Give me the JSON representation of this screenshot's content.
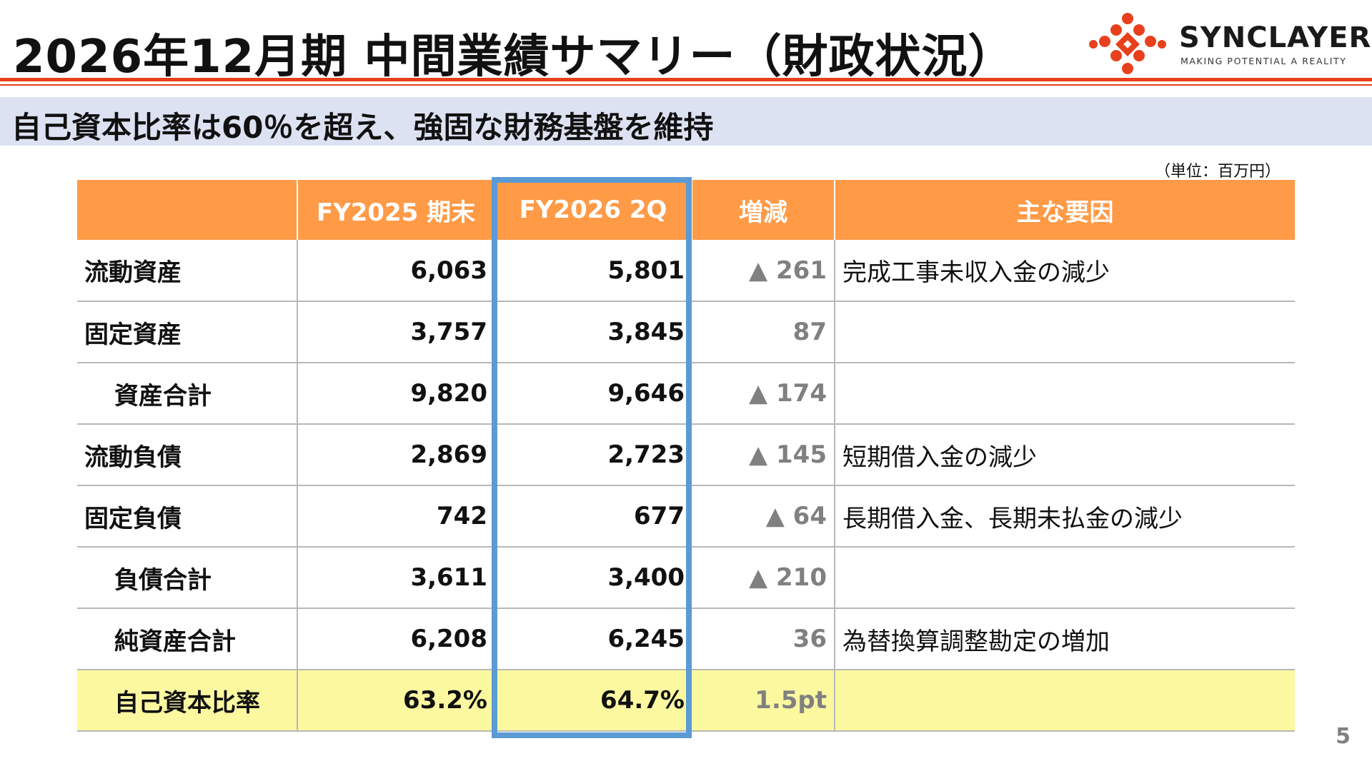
{
  "header": {
    "title": "2026年12月期 中間業績サマリー（財政状況）",
    "subtitle": "自己資本比率は60％を超え、強固な財務基盤を維持"
  },
  "logo": {
    "name": "SYNCLAYER",
    "tagline": "MAKING POTENTIAL A REALITY",
    "accent_color": "#e8401c"
  },
  "unit_note": "（単位：百万円）",
  "table": {
    "headers": [
      "",
      "FY2025 期末",
      "FY2026 2Q",
      "増減",
      "主な要因"
    ],
    "rows": [
      {
        "label": "流動資産",
        "fy2025": "6,063",
        "fy2026": "5,801",
        "delta": "▲ 261",
        "factor": "完成工事未収入金の減少"
      },
      {
        "label": "固定資産",
        "fy2025": "3,757",
        "fy2026": "3,845",
        "delta": "87",
        "factor": ""
      },
      {
        "label": "資産合計",
        "fy2025": "9,820",
        "fy2026": "9,646",
        "delta": "▲ 174",
        "factor": ""
      },
      {
        "label": "流動負債",
        "fy2025": "2,869",
        "fy2026": "2,723",
        "delta": "▲ 145",
        "factor": "短期借入金の減少"
      },
      {
        "label": "固定負債",
        "fy2025": "742",
        "fy2026": "677",
        "delta": "▲ 64",
        "factor": "長期借入金、長期未払金の減少"
      },
      {
        "label": "負債合計",
        "fy2025": "3,611",
        "fy2026": "3,400",
        "delta": "▲ 210",
        "factor": ""
      },
      {
        "label": "純資産合計",
        "fy2025": "6,208",
        "fy2026": "6,245",
        "delta": "36",
        "factor": "為替換算調整勘定の増加"
      },
      {
        "label": "自己資本比率",
        "fy2025": "63.2%",
        "fy2026": "64.7%",
        "delta": "1.5pt",
        "factor": ""
      }
    ]
  },
  "colors": {
    "header_fill": "#ff9a47",
    "highlight_border": "#5b9bd5",
    "ratio_row_fill": "#fbf8a0",
    "subtitle_fill": "#dde2f3"
  },
  "page_number": "5"
}
